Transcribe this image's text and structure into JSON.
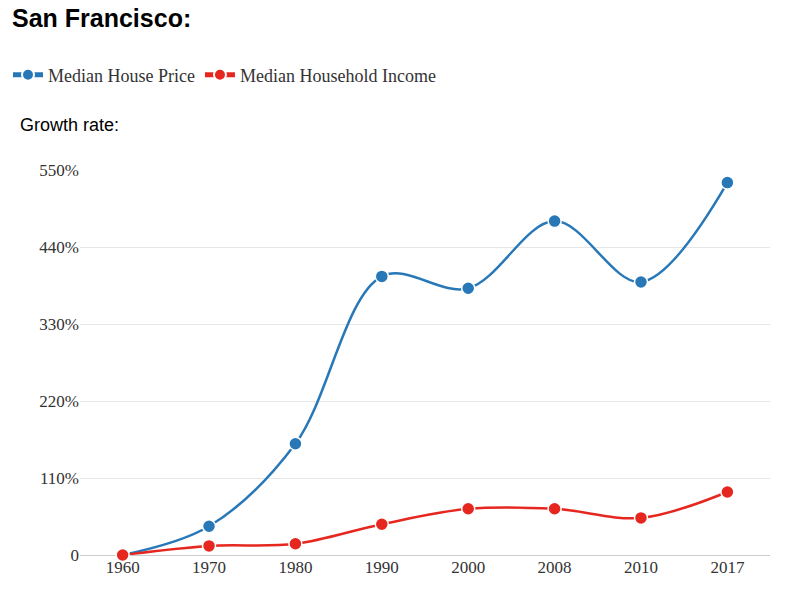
{
  "chart_data": {
    "type": "line",
    "title": "San Francisco:",
    "ylabel": "Growth rate:",
    "categories": [
      "1960",
      "1970",
      "1980",
      "1990",
      "2000",
      "2008",
      "2010",
      "2017"
    ],
    "series": [
      {
        "name": "Median House Price",
        "color": "#2878b8",
        "values": [
          0,
          41,
          159,
          398,
          381,
          477,
          390,
          532
        ]
      },
      {
        "name": "Median Household Income",
        "color": "#e6271f",
        "values": [
          0,
          13,
          16,
          44,
          66,
          66,
          53,
          90
        ]
      }
    ],
    "ylim": [
      0,
      550
    ],
    "yticks": [
      0,
      {
        "value": 110,
        "label": "110%"
      },
      {
        "value": 220,
        "label": "220%"
      },
      {
        "value": 330,
        "label": "330%"
      },
      {
        "value": 440,
        "label": "440%"
      },
      {
        "value": 550,
        "label": "550%"
      }
    ],
    "grid": true,
    "legend": "top-left",
    "line_style": "smooth",
    "marker": "circle"
  }
}
